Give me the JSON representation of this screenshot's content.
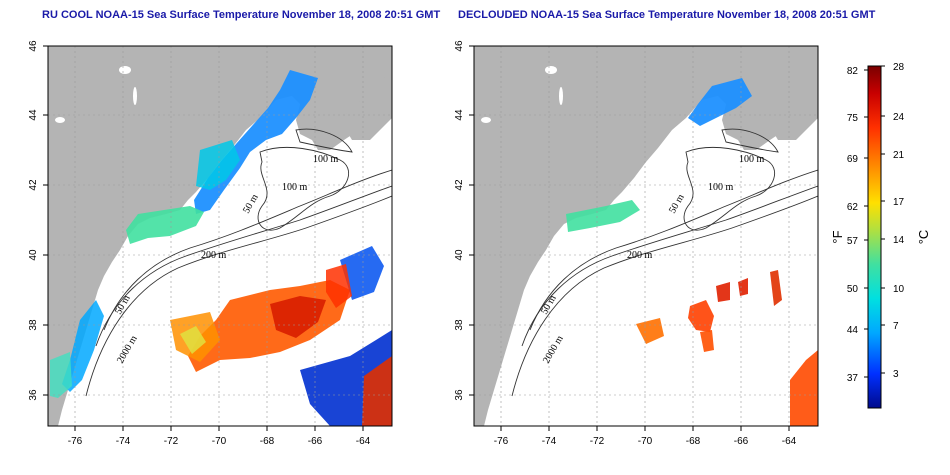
{
  "titles": {
    "left": "RU COOL NOAA-15 Sea Surface Temperature November 18, 2008 20:51 GMT",
    "right": "DECLOUDED NOAA-15 Sea Surface Temperature November 18, 2008 20:51 GMT"
  },
  "axes": {
    "lon_ticks": [
      "-76",
      "-74",
      "-72",
      "-70",
      "-68",
      "-66",
      "-64"
    ],
    "lat_ticks": [
      "46",
      "44",
      "42",
      "40",
      "38",
      "36"
    ]
  },
  "contour_labels": [
    "100 m",
    "100 m",
    "50 m",
    "200 m",
    "50 m",
    "2000 m"
  ],
  "colorbar": {
    "fahrenheit_ticks": [
      "82",
      "75",
      "69",
      "62",
      "57",
      "50",
      "44",
      "37"
    ],
    "celsius_ticks": [
      "28",
      "24",
      "21",
      "17",
      "14",
      "10",
      "7",
      "3"
    ],
    "fahrenheit_unit": "°F",
    "celsius_unit": "°C"
  },
  "colors": {
    "land": "#b4b4b4",
    "ocean": "#ffffff",
    "title": "#1a1aa8",
    "scale": [
      "#000a8c",
      "#0030ff",
      "#00a8ff",
      "#00e0e0",
      "#40e0a0",
      "#b0e040",
      "#ffe000",
      "#ff9000",
      "#ff3000",
      "#c80000",
      "#7a0000"
    ]
  }
}
